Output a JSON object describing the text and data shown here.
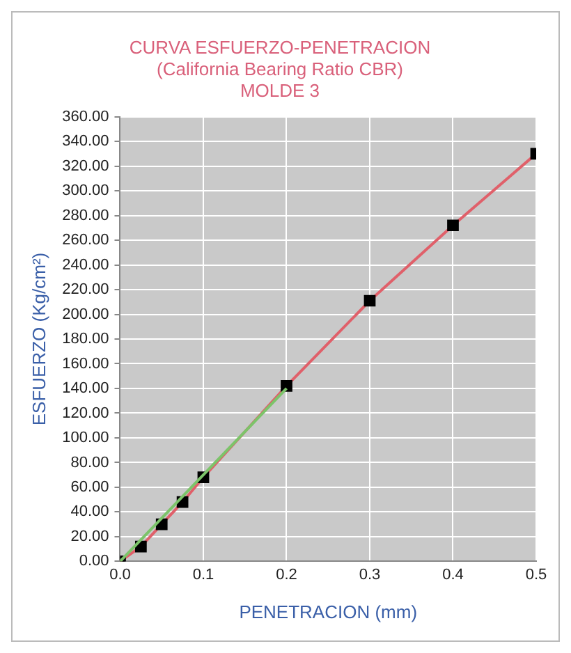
{
  "chart_data": {
    "type": "line",
    "title": "CURVA ESFUERZO-PENETRACION\n(California Bearing Ratio CBR)\nMOLDE 3",
    "xlabel": "PENETRACION (mm)",
    "ylabel": "ESFUERZO (Kg/cm²)",
    "x": [
      0,
      0.025,
      0.05,
      0.075,
      0.1,
      0.2,
      0.3,
      0.4,
      0.5
    ],
    "series": [
      {
        "color": "#e0606a",
        "values": [
          0,
          12,
          30,
          48,
          68,
          142,
          211,
          272,
          330
        ]
      },
      {
        "type": "line",
        "color": "#7cc46a",
        "marker": "none",
        "x": [
          0,
          0.2
        ],
        "values": [
          0,
          140
        ]
      }
    ],
    "marker": "square",
    "grid": true,
    "xlim": [
      0,
      0.5
    ],
    "ylim": [
      0,
      360
    ],
    "xticks": [
      {
        "value": 0,
        "label": "0.0"
      },
      0.1,
      0.2,
      0.3,
      0.4,
      0.5
    ],
    "yticks": [
      {
        "value": 0,
        "label": "0.00"
      },
      {
        "value": 20,
        "label": "20.00"
      },
      {
        "value": 40,
        "label": "40.00"
      },
      {
        "value": 60,
        "label": "60.00"
      },
      {
        "value": 80,
        "label": "80.00"
      },
      {
        "value": 100,
        "label": "100.00"
      },
      {
        "value": 120,
        "label": "120.00"
      },
      {
        "value": 140,
        "label": "140.00"
      },
      {
        "value": 160,
        "label": "160.00"
      },
      {
        "value": 180,
        "label": "180.00"
      },
      {
        "value": 200,
        "label": "200.00"
      },
      {
        "value": 220,
        "label": "220.00"
      },
      {
        "value": 240,
        "label": "240.00"
      },
      {
        "value": 260,
        "label": "260.00"
      },
      {
        "value": 280,
        "label": "280.00"
      },
      {
        "value": 300,
        "label": "300.00"
      },
      {
        "value": 320,
        "label": "320.00"
      },
      {
        "value": 340,
        "label": "340.00"
      },
      {
        "value": 360,
        "label": "360.00"
      }
    ]
  }
}
